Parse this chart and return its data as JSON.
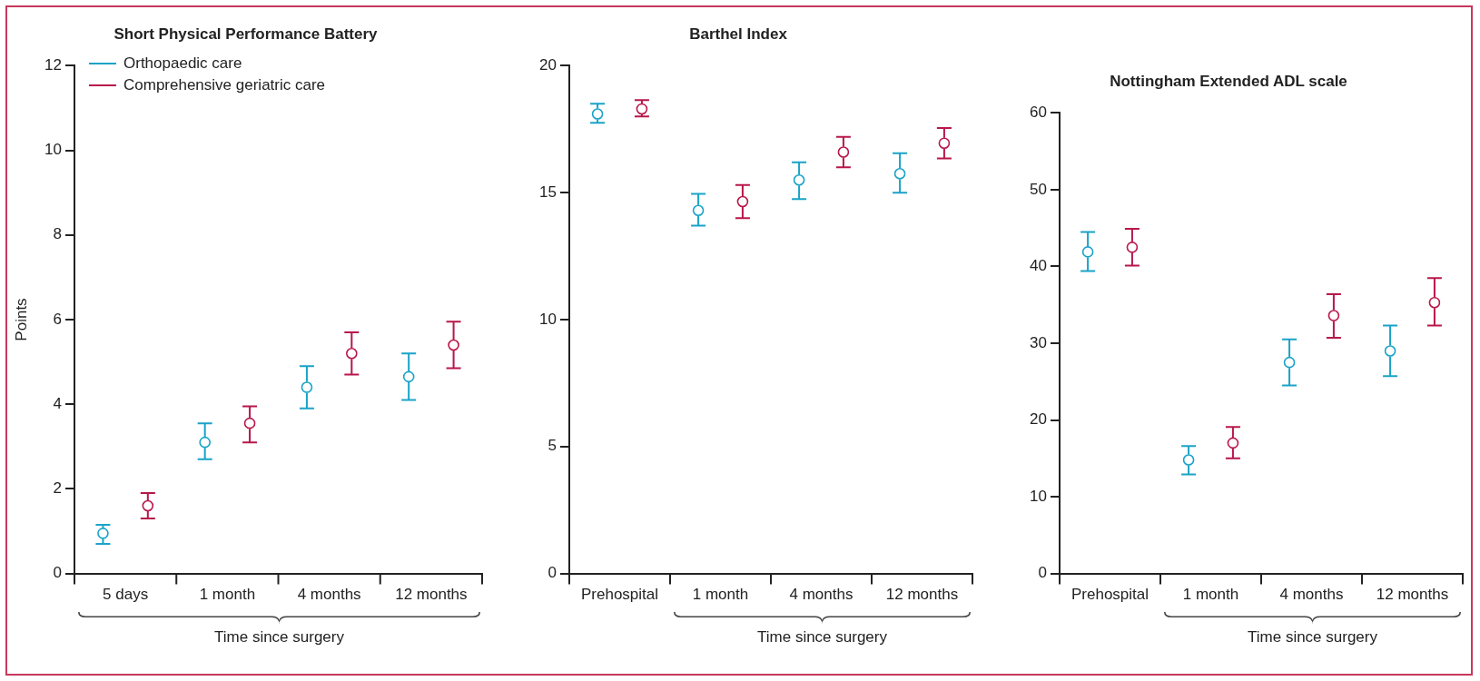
{
  "chart_data": [
    {
      "type": "scatter",
      "title": "Short Physical Performance Battery",
      "xlabel": "Time since surgery",
      "ylabel": "Points",
      "categories": [
        "5 days",
        "1 month",
        "4 months",
        "12 months"
      ],
      "ylim": [
        0,
        12
      ],
      "yticks": [
        0,
        2,
        4,
        6,
        8,
        10,
        12
      ],
      "marker": "circle",
      "legend": "top left",
      "grid": false,
      "series": [
        {
          "name": "Orthopaedic care",
          "color": "#1aa3c8",
          "values": [
            0.95,
            3.1,
            4.4,
            4.65
          ],
          "errors": [
            [
              0.7,
              1.15
            ],
            [
              2.7,
              3.55
            ],
            [
              3.9,
              4.9
            ],
            [
              4.1,
              5.2
            ]
          ]
        },
        {
          "name": "Comprehensive geriatric care",
          "color": "#b8174a",
          "values": [
            1.6,
            3.55,
            5.2,
            5.4
          ],
          "errors": [
            [
              1.3,
              1.9
            ],
            [
              3.1,
              3.95
            ],
            [
              4.7,
              5.7
            ],
            [
              4.85,
              5.95
            ]
          ]
        }
      ]
    },
    {
      "type": "scatter",
      "title": "Barthel Index",
      "xlabel": "Time since surgery",
      "categories": [
        "Prehospital",
        "1 month",
        "4 months",
        "12 months"
      ],
      "ylim": [
        0,
        20
      ],
      "yticks": [
        0,
        5,
        10,
        15,
        20
      ],
      "marker": "circle",
      "grid": false,
      "series": [
        {
          "color": "#1aa3c8",
          "values": [
            18.1,
            14.3,
            15.5,
            15.75
          ],
          "errors": [
            [
              17.75,
              18.5
            ],
            [
              13.7,
              14.95
            ],
            [
              14.75,
              16.2
            ],
            [
              15,
              16.55
            ]
          ]
        },
        {
          "color": "#b8174a",
          "values": [
            18.3,
            14.65,
            16.6,
            16.95
          ],
          "errors": [
            [
              18,
              18.65
            ],
            [
              14,
              15.3
            ],
            [
              16,
              17.2
            ],
            [
              16.35,
              17.55
            ]
          ]
        }
      ]
    },
    {
      "type": "scatter",
      "title": "Nottingham Extended ADL scale",
      "xlabel": "Time since surgery",
      "categories": [
        "Prehospital",
        "1 month",
        "4 months",
        "12 months"
      ],
      "ylim": [
        0,
        60
      ],
      "yticks": [
        0,
        10,
        20,
        30,
        40,
        50,
        60
      ],
      "marker": "circle",
      "grid": false,
      "series": [
        {
          "color": "#1aa3c8",
          "values": [
            41.9,
            14.8,
            27.5,
            29
          ],
          "errors": [
            [
              39.4,
              44.5
            ],
            [
              12.9,
              16.6
            ],
            [
              24.5,
              30.5
            ],
            [
              25.7,
              32.3
            ]
          ]
        },
        {
          "color": "#b8174a",
          "values": [
            42.5,
            17,
            33.6,
            35.3
          ],
          "errors": [
            [
              40.1,
              44.9
            ],
            [
              15,
              19.1
            ],
            [
              30.7,
              36.4
            ],
            [
              32.3,
              38.5
            ]
          ]
        }
      ]
    }
  ]
}
